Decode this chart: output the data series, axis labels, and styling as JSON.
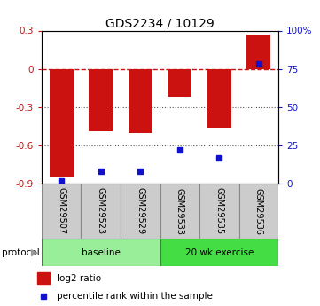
{
  "title": "GDS2234 / 10129",
  "samples": [
    "GSM29507",
    "GSM29523",
    "GSM29529",
    "GSM29533",
    "GSM29535",
    "GSM29536"
  ],
  "log2_ratio": [
    -0.85,
    -0.49,
    -0.5,
    -0.22,
    -0.46,
    0.27
  ],
  "percentile_rank": [
    2,
    8,
    8,
    22,
    17,
    78
  ],
  "ylim_left": [
    -0.9,
    0.3
  ],
  "ylim_right": [
    0,
    100
  ],
  "bar_color": "#cc1111",
  "dot_color": "#1111cc",
  "right_ticks": [
    0,
    25,
    50,
    75,
    100
  ],
  "right_tick_labels": [
    "0",
    "25",
    "50",
    "75",
    "100%"
  ],
  "protocol_groups": [
    {
      "label": "baseline",
      "span": 3
    },
    {
      "label": "20 wk exercise",
      "span": 3
    }
  ],
  "protocol_colors": [
    "#99ee99",
    "#44dd44"
  ],
  "sample_box_color": "#cccccc",
  "sample_box_edge": "#888888",
  "background_color": "#ffffff",
  "plot_bg": "#ffffff",
  "dashed_line_color": "#cc1111",
  "dotted_line_color": "#555555",
  "title_fontsize": 10,
  "tick_fontsize": 7.5,
  "label_fontsize": 7,
  "legend_fontsize": 7.5,
  "protocol_fontsize": 7.5
}
